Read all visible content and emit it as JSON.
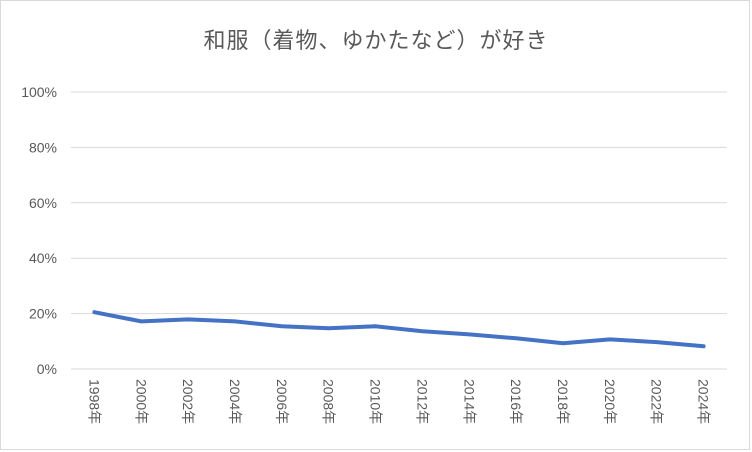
{
  "chart_data": {
    "type": "line",
    "title": "和服（着物、ゆかたなど）が好き",
    "xlabel": "",
    "ylabel": "",
    "categories": [
      "1998年",
      "2000年",
      "2002年",
      "2004年",
      "2006年",
      "2008年",
      "2010年",
      "2012年",
      "2014年",
      "2016年",
      "2018年",
      "2020年",
      "2022年",
      "2024年"
    ],
    "series": [
      {
        "values": [
          20.5,
          17.2,
          17.9,
          17.2,
          15.4,
          14.7,
          15.4,
          13.6,
          12.5,
          11.1,
          9.3,
          10.7,
          9.7,
          8.2
        ]
      }
    ],
    "ylim": [
      0,
      100
    ],
    "yticks": [
      "0%",
      "20%",
      "40%",
      "60%",
      "80%",
      "100%"
    ],
    "grid": "horizontal",
    "line_color": "#4472c4"
  }
}
